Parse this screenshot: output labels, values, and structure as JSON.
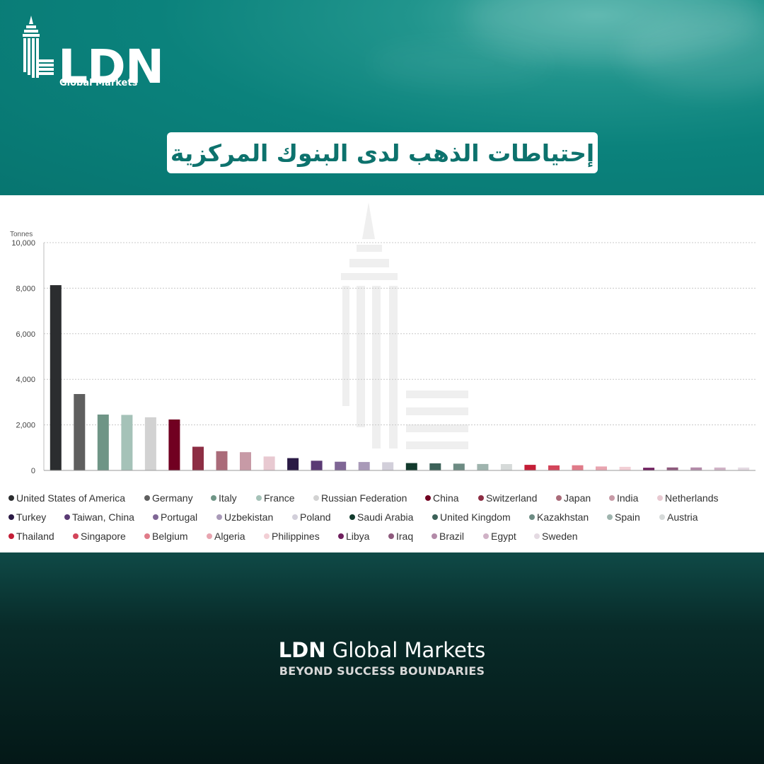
{
  "brand": {
    "logo_text": "LDN",
    "logo_sub": "Global Markets",
    "footer_name_bold": "LDN",
    "footer_name_rest": " Global Markets",
    "footer_tagline": "BEYOND SUCCESS BOUNDARIES"
  },
  "header": {
    "title": "إحتياطات الذهب لدى البنوك المركزية"
  },
  "colors": {
    "header_teal": "#0b827c",
    "title_text": "#0d726d",
    "footer_dark": "#06201f"
  },
  "chart_data": {
    "type": "bar",
    "ylabel": "Tonnes",
    "ylim": [
      0,
      10000
    ],
    "yticks": [
      "0",
      "2,000",
      "4,000",
      "6,000",
      "8,000",
      "10,000"
    ],
    "legend_position": "bottom",
    "grid": "horizontal dotted",
    "categories": [
      "United States of America",
      "Germany",
      "Italy",
      "France",
      "Russian Federation",
      "China",
      "Switzerland",
      "Japan",
      "India",
      "Netherlands",
      "Turkey",
      "Taiwan, China",
      "Portugal",
      "Uzbekistan",
      "Poland",
      "Saudi Arabia",
      "United Kingdom",
      "Kazakhstan",
      "Spain",
      "Austria",
      "Thailand",
      "Singapore",
      "Belgium",
      "Algeria",
      "Philippines",
      "Libya",
      "Iraq",
      "Brazil",
      "Egypt",
      "Sweden"
    ],
    "values": [
      8133,
      3353,
      2452,
      2437,
      2333,
      2235,
      1040,
      846,
      800,
      612,
      540,
      424,
      383,
      371,
      359,
      323,
      310,
      298,
      282,
      280,
      244,
      220,
      227,
      174,
      159,
      117,
      130,
      130,
      127,
      126
    ],
    "colors": [
      "#2b2d2f",
      "#5f5f5f",
      "#6f9586",
      "#a5c2b8",
      "#d2d2d2",
      "#710021",
      "#8d2e44",
      "#aa6b79",
      "#c79aa6",
      "#e8c9d1",
      "#2a1a45",
      "#5a3a74",
      "#7f6695",
      "#a99ab8",
      "#d2cfda",
      "#123a2c",
      "#3c6158",
      "#6d8b83",
      "#9fb4ae",
      "#d6dad9",
      "#c41d36",
      "#d3455a",
      "#e07b89",
      "#e8a5b0",
      "#f2cfd5",
      "#6f1f5e",
      "#8e5a7d",
      "#b38aa8",
      "#d0b2c6",
      "#e4dae2"
    ]
  }
}
